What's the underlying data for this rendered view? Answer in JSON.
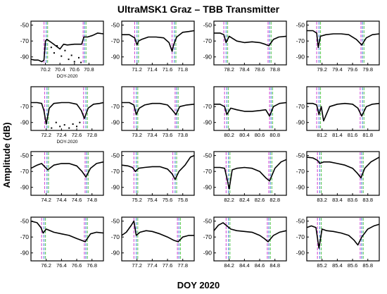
{
  "figure": {
    "title": "UltraMSK1 Graz – TBB Transmitter",
    "ylabel": "Amplitude (dB)",
    "xlabel": "DOY 2020",
    "panel_xlabel": "DOY-2020"
  },
  "colors": {
    "trace": "#000000",
    "marker_magenta": "#d24fd8",
    "marker_blue": "#4f8ad8",
    "marker_green": "#5cc85c"
  },
  "chart_data": [
    {
      "type": "line",
      "ylim": [
        -100,
        -45
      ],
      "yticks": [
        -50,
        -70,
        -90
      ],
      "xticks": [
        "70.2",
        "70.4",
        "70.6",
        "70.8"
      ],
      "xlim": [
        70.0,
        71.0
      ],
      "show_xlabel": true,
      "markers": [
        70.18,
        70.21,
        70.23,
        70.72,
        70.74,
        70.76
      ],
      "x": [
        70.0,
        70.05,
        70.1,
        70.15,
        70.18,
        70.2,
        70.22,
        70.3,
        70.4,
        70.45,
        70.5,
        70.6,
        70.65,
        70.7,
        70.73,
        70.78,
        70.85,
        70.92,
        71.0
      ],
      "y": [
        -93,
        -94,
        -94,
        -96,
        -94,
        -70,
        -68,
        -73,
        -80,
        -74,
        -75,
        -74,
        -74,
        -74,
        -65,
        -65,
        -63,
        -60,
        -61
      ],
      "scatter": [
        [
          70.28,
          -78
        ],
        [
          70.32,
          -85
        ],
        [
          70.36,
          -76
        ],
        [
          70.42,
          -89
        ],
        [
          70.47,
          -82
        ],
        [
          70.52,
          -93
        ],
        [
          70.56,
          -88
        ],
        [
          70.6,
          -96
        ],
        [
          70.66,
          -91
        ],
        [
          70.69,
          -97
        ]
      ]
    },
    {
      "type": "line",
      "ylim": [
        -100,
        -45
      ],
      "yticks": [
        -50,
        -70,
        -90
      ],
      "xticks": [
        "71.2",
        "71.4",
        "71.6",
        "71.8"
      ],
      "xlim": [
        71.0,
        71.95
      ],
      "show_xlabel": false,
      "markers": [
        71.17,
        71.2,
        71.22,
        71.66,
        71.69,
        71.71
      ],
      "x": [
        71.0,
        71.1,
        71.17,
        71.2,
        71.22,
        71.26,
        71.35,
        71.45,
        71.55,
        71.62,
        71.66,
        71.68,
        71.72,
        71.8,
        71.88,
        71.95
      ],
      "y": [
        -62,
        -62,
        -66,
        -75,
        -70,
        -68,
        -65,
        -65,
        -66,
        -72,
        -83,
        -75,
        -65,
        -59,
        -58,
        -57
      ]
    },
    {
      "type": "line",
      "ylim": [
        -100,
        -45
      ],
      "yticks": [
        -50,
        -70,
        -90
      ],
      "xticks": [
        "78.2",
        "78.4",
        "78.6",
        "78.8"
      ],
      "xlim": [
        78.0,
        78.95
      ],
      "show_xlabel": false,
      "markers": [
        78.13,
        78.16,
        78.18,
        78.71,
        78.73,
        78.75
      ],
      "x": [
        78.0,
        78.08,
        78.13,
        78.16,
        78.2,
        78.3,
        78.4,
        78.5,
        78.6,
        78.67,
        78.72,
        78.78,
        78.85,
        78.95
      ],
      "y": [
        -60,
        -60,
        -62,
        -72,
        -64,
        -70,
        -72,
        -71,
        -72,
        -74,
        -76,
        -68,
        -65,
        -64
      ]
    },
    {
      "type": "line",
      "ylim": [
        -100,
        -45
      ],
      "yticks": [
        -50,
        -70,
        -90
      ],
      "xticks": [
        "79.2",
        "79.4",
        "79.6",
        "79.8"
      ],
      "xlim": [
        79.0,
        79.95
      ],
      "show_xlabel": false,
      "markers": [
        79.13,
        79.16,
        79.18,
        79.71,
        79.73,
        79.75
      ],
      "x": [
        79.0,
        79.08,
        79.13,
        79.15,
        79.18,
        79.25,
        79.35,
        79.45,
        79.55,
        79.65,
        79.72,
        79.78,
        79.86,
        79.95
      ],
      "y": [
        -57,
        -57,
        -60,
        -78,
        -64,
        -62,
        -61,
        -61,
        -62,
        -68,
        -75,
        -66,
        -62,
        -61
      ]
    },
    {
      "type": "line",
      "ylim": [
        -100,
        -45
      ],
      "yticks": [
        -70,
        -90
      ],
      "xticks": [
        "72.2",
        "72.4",
        "72.6",
        "72.8"
      ],
      "xlim": [
        72.0,
        72.95
      ],
      "show_xlabel": true,
      "markers": [
        72.18,
        72.21,
        72.23,
        72.69,
        72.72,
        72.74
      ],
      "x": [
        72.0,
        72.08,
        72.14,
        72.17,
        72.2,
        72.24,
        72.3,
        72.4,
        72.5,
        72.6,
        72.66,
        72.7,
        72.75,
        72.82,
        72.9,
        72.95
      ],
      "y": [
        -65,
        -65,
        -66,
        -75,
        -92,
        -72,
        -66,
        -65,
        -65,
        -67,
        -75,
        -85,
        -72,
        -67,
        -66,
        -65
      ],
      "scatter": [
        [
          72.27,
          -97
        ],
        [
          72.33,
          -90
        ],
        [
          72.38,
          -95
        ],
        [
          72.44,
          -93
        ],
        [
          72.5,
          -97
        ],
        [
          72.55,
          -92
        ],
        [
          72.6,
          -95
        ],
        [
          72.64,
          -90
        ]
      ]
    },
    {
      "type": "line",
      "ylim": [
        -100,
        -45
      ],
      "yticks": [
        -70,
        -90
      ],
      "xticks": [
        "73.2",
        "73.4",
        "73.6",
        "73.8"
      ],
      "xlim": [
        73.0,
        73.95
      ],
      "show_xlabel": false,
      "markers": [
        73.16,
        73.19,
        73.21,
        73.7,
        73.72,
        73.74
      ],
      "x": [
        73.0,
        73.1,
        73.16,
        73.19,
        73.23,
        73.3,
        73.4,
        73.5,
        73.6,
        73.66,
        73.71,
        73.76,
        73.85,
        73.95
      ],
      "y": [
        -65,
        -65,
        -68,
        -80,
        -72,
        -68,
        -66,
        -66,
        -68,
        -74,
        -80,
        -70,
        -68,
        -67
      ]
    },
    {
      "type": "line",
      "ylim": [
        -100,
        -45
      ],
      "yticks": [
        -70,
        -90
      ],
      "xticks": [
        "80.2",
        "80.4",
        "80.6",
        "80.8"
      ],
      "xlim": [
        80.0,
        80.95
      ],
      "show_xlabel": false,
      "markers": [
        80.14,
        80.17,
        80.19,
        80.73,
        80.75,
        80.77
      ],
      "x": [
        80.0,
        80.08,
        80.14,
        80.17,
        80.22,
        80.3,
        80.4,
        80.5,
        80.6,
        80.68,
        80.73,
        80.78,
        80.86,
        80.95
      ],
      "y": [
        -67,
        -67,
        -70,
        -80,
        -72,
        -74,
        -76,
        -76,
        -75,
        -74,
        -82,
        -70,
        -66,
        -65
      ]
    },
    {
      "type": "line",
      "ylim": [
        -100,
        -45
      ],
      "yticks": [
        -70,
        -90
      ],
      "xticks": [
        "81.2",
        "81.4",
        "81.6",
        "81.8"
      ],
      "xlim": [
        81.0,
        81.95
      ],
      "show_xlabel": false,
      "markers": [
        81.13,
        81.16,
        81.18,
        81.7,
        81.73,
        81.75
      ],
      "x": [
        81.0,
        81.08,
        81.13,
        81.16,
        81.19,
        81.22,
        81.3,
        81.4,
        81.5,
        81.6,
        81.67,
        81.72,
        81.78,
        81.86,
        81.95
      ],
      "y": [
        -66,
        -66,
        -68,
        -80,
        -70,
        -88,
        -70,
        -67,
        -66,
        -67,
        -72,
        -82,
        -70,
        -67,
        -66
      ]
    },
    {
      "type": "line",
      "ylim": [
        -100,
        -45
      ],
      "yticks": [
        -50,
        -70,
        -90
      ],
      "xticks": [
        "74.2",
        "74.4",
        "74.6",
        "74.8"
      ],
      "xlim": [
        74.0,
        74.95
      ],
      "show_xlabel": false,
      "markers": [
        74.18,
        74.21,
        74.23,
        74.71,
        74.73,
        74.75
      ],
      "x": [
        74.0,
        74.08,
        74.14,
        74.18,
        74.22,
        74.3,
        74.4,
        74.5,
        74.6,
        74.67,
        74.72,
        74.78,
        74.86,
        74.95
      ],
      "y": [
        -66,
        -62,
        -60,
        -64,
        -68,
        -62,
        -60,
        -60,
        -63,
        -70,
        -77,
        -66,
        -60,
        -58
      ]
    },
    {
      "type": "line",
      "ylim": [
        -100,
        -45
      ],
      "yticks": [
        -50,
        -70,
        -90
      ],
      "xticks": [
        "75.2",
        "75.4",
        "75.6",
        "75.8"
      ],
      "xlim": [
        75.0,
        75.95
      ],
      "show_xlabel": false,
      "markers": [
        75.16,
        75.19,
        75.21,
        75.67,
        75.7,
        75.72
      ],
      "x": [
        75.0,
        75.08,
        75.14,
        75.18,
        75.22,
        75.3,
        75.4,
        75.5,
        75.6,
        75.66,
        75.7,
        75.75,
        75.83,
        75.9,
        75.95
      ],
      "y": [
        -62,
        -63,
        -65,
        -70,
        -66,
        -65,
        -64,
        -64,
        -67,
        -73,
        -80,
        -70,
        -62,
        -52,
        -50
      ]
    },
    {
      "type": "line",
      "ylim": [
        -100,
        -45
      ],
      "yticks": [
        -50,
        -70,
        -90
      ],
      "xticks": [
        "82.2",
        "82.4",
        "82.6",
        "82.8"
      ],
      "xlim": [
        82.0,
        82.95
      ],
      "show_xlabel": false,
      "markers": [
        82.16,
        82.19,
        82.21,
        82.72,
        82.74,
        82.76
      ],
      "x": [
        82.0,
        82.08,
        82.14,
        82.17,
        82.2,
        82.24,
        82.3,
        82.4,
        82.5,
        82.6,
        82.68,
        82.73,
        82.8,
        82.88,
        82.95
      ],
      "y": [
        -65,
        -65,
        -66,
        -78,
        -92,
        -68,
        -66,
        -65,
        -66,
        -70,
        -78,
        -82,
        -66,
        -58,
        -55
      ]
    },
    {
      "type": "line",
      "ylim": [
        -100,
        -45
      ],
      "yticks": [
        -50,
        -70,
        -90
      ],
      "xticks": [
        "83.2",
        "83.4",
        "83.6",
        "83.8"
      ],
      "xlim": [
        83.0,
        83.95
      ],
      "show_xlabel": false,
      "markers": [
        83.14,
        83.17,
        83.19,
        83.7,
        83.72,
        83.74
      ],
      "x": [
        83.0,
        83.08,
        83.14,
        83.17,
        83.22,
        83.3,
        83.4,
        83.5,
        83.6,
        83.66,
        83.71,
        83.76,
        83.84,
        83.95
      ],
      "y": [
        -52,
        -53,
        -56,
        -60,
        -58,
        -58,
        -60,
        -62,
        -66,
        -72,
        -78,
        -66,
        -58,
        -52
      ]
    },
    {
      "type": "line",
      "ylim": [
        -100,
        -45
      ],
      "yticks": [
        -50,
        -70,
        -90
      ],
      "xticks": [
        "76.2",
        "76.4",
        "76.6",
        "76.8"
      ],
      "xlim": [
        76.0,
        76.95
      ],
      "show_xlabel": false,
      "markers": [
        76.14,
        76.17,
        76.19,
        76.7,
        76.72,
        76.74
      ],
      "x": [
        76.0,
        76.08,
        76.13,
        76.16,
        76.2,
        76.3,
        76.4,
        76.5,
        76.6,
        76.66,
        76.71,
        76.78,
        76.86,
        76.95
      ],
      "y": [
        -50,
        -52,
        -58,
        -65,
        -60,
        -64,
        -66,
        -68,
        -72,
        -74,
        -76,
        -66,
        -64,
        -65
      ]
    },
    {
      "type": "line",
      "ylim": [
        -100,
        -45
      ],
      "yticks": [
        -50,
        -70,
        -90
      ],
      "xticks": [
        "77.2",
        "77.4",
        "77.6",
        "77.8"
      ],
      "xlim": [
        77.0,
        77.95
      ],
      "show_xlabel": false,
      "markers": [
        77.16,
        77.19,
        77.21,
        77.73,
        77.75,
        77.77
      ],
      "x": [
        77.0,
        77.06,
        77.12,
        77.16,
        77.19,
        77.24,
        77.32,
        77.4,
        77.5,
        77.6,
        77.68,
        77.74,
        77.8,
        77.88,
        77.95
      ],
      "y": [
        -68,
        -64,
        -56,
        -50,
        -68,
        -64,
        -62,
        -63,
        -66,
        -70,
        -74,
        -76,
        -70,
        -68,
        -68
      ]
    },
    {
      "type": "line",
      "ylim": [
        -100,
        -45
      ],
      "yticks": [
        -50,
        -70,
        -90
      ],
      "xticks": [
        "84.2",
        "84.4",
        "84.6",
        "84.8"
      ],
      "xlim": [
        84.0,
        84.95
      ],
      "show_xlabel": false,
      "markers": [
        84.16,
        84.19,
        84.21,
        84.7,
        84.72,
        84.74
      ],
      "x": [
        84.0,
        84.06,
        84.12,
        84.17,
        84.22,
        84.3,
        84.4,
        84.5,
        84.6,
        84.66,
        84.71,
        84.78,
        84.86,
        84.95
      ],
      "y": [
        -62,
        -55,
        -52,
        -56,
        -60,
        -62,
        -63,
        -64,
        -68,
        -72,
        -76,
        -68,
        -64,
        -62
      ]
    },
    {
      "type": "line",
      "ylim": [
        -100,
        -45
      ],
      "yticks": [
        -50,
        -70,
        -90
      ],
      "xticks": [
        "85.2",
        "85.4",
        "85.6",
        "85.8"
      ],
      "xlim": [
        85.0,
        85.95
      ],
      "show_xlabel": false,
      "markers": [
        85.14,
        85.17,
        85.19,
        85.7,
        85.72,
        85.74
      ],
      "x": [
        85.0,
        85.06,
        85.12,
        85.16,
        85.2,
        85.26,
        85.35,
        85.45,
        85.55,
        85.62,
        85.67,
        85.72,
        85.8,
        85.88,
        85.95
      ],
      "y": [
        -58,
        -56,
        -58,
        -84,
        -60,
        -62,
        -63,
        -65,
        -68,
        -74,
        -80,
        -70,
        -60,
        -56,
        -54
      ]
    }
  ]
}
